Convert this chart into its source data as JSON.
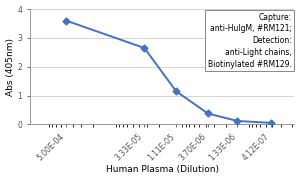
{
  "x_values": [
    0.0005,
    3.33e-05,
    1.11e-05,
    3.7e-06,
    1.33e-06,
    4.12e-07
  ],
  "y_values": [
    3.6,
    2.65,
    1.15,
    0.38,
    0.12,
    0.055
  ],
  "x_ticklabels": [
    "5.00E-04",
    "3.33E-05",
    "1.11E-05",
    "3.70E-06",
    "1.33E-06",
    "4.12E-07"
  ],
  "xlabel": "Human Plasma (Dilution)",
  "ylabel": "Abs (405nm)",
  "ylim": [
    0,
    4
  ],
  "yticks": [
    0,
    1,
    2,
    3,
    4
  ],
  "line_color": "#4472c4",
  "marker": "D",
  "marker_color": "#4472c4",
  "marker_size": 3.5,
  "line_width": 1.4,
  "legend_lines": [
    "Capture:",
    "anti-HuIgM, #RM121;",
    "Detection:",
    "anti-Light chains,",
    "Biotinylated #RM129."
  ],
  "legend_fontsize": 5.5,
  "axis_label_fontsize": 6.5,
  "tick_fontsize": 5.5,
  "background_color": "#ffffff",
  "plot_bg": "#ffffff",
  "grid_color": "#cccccc",
  "spine_color": "#999999"
}
